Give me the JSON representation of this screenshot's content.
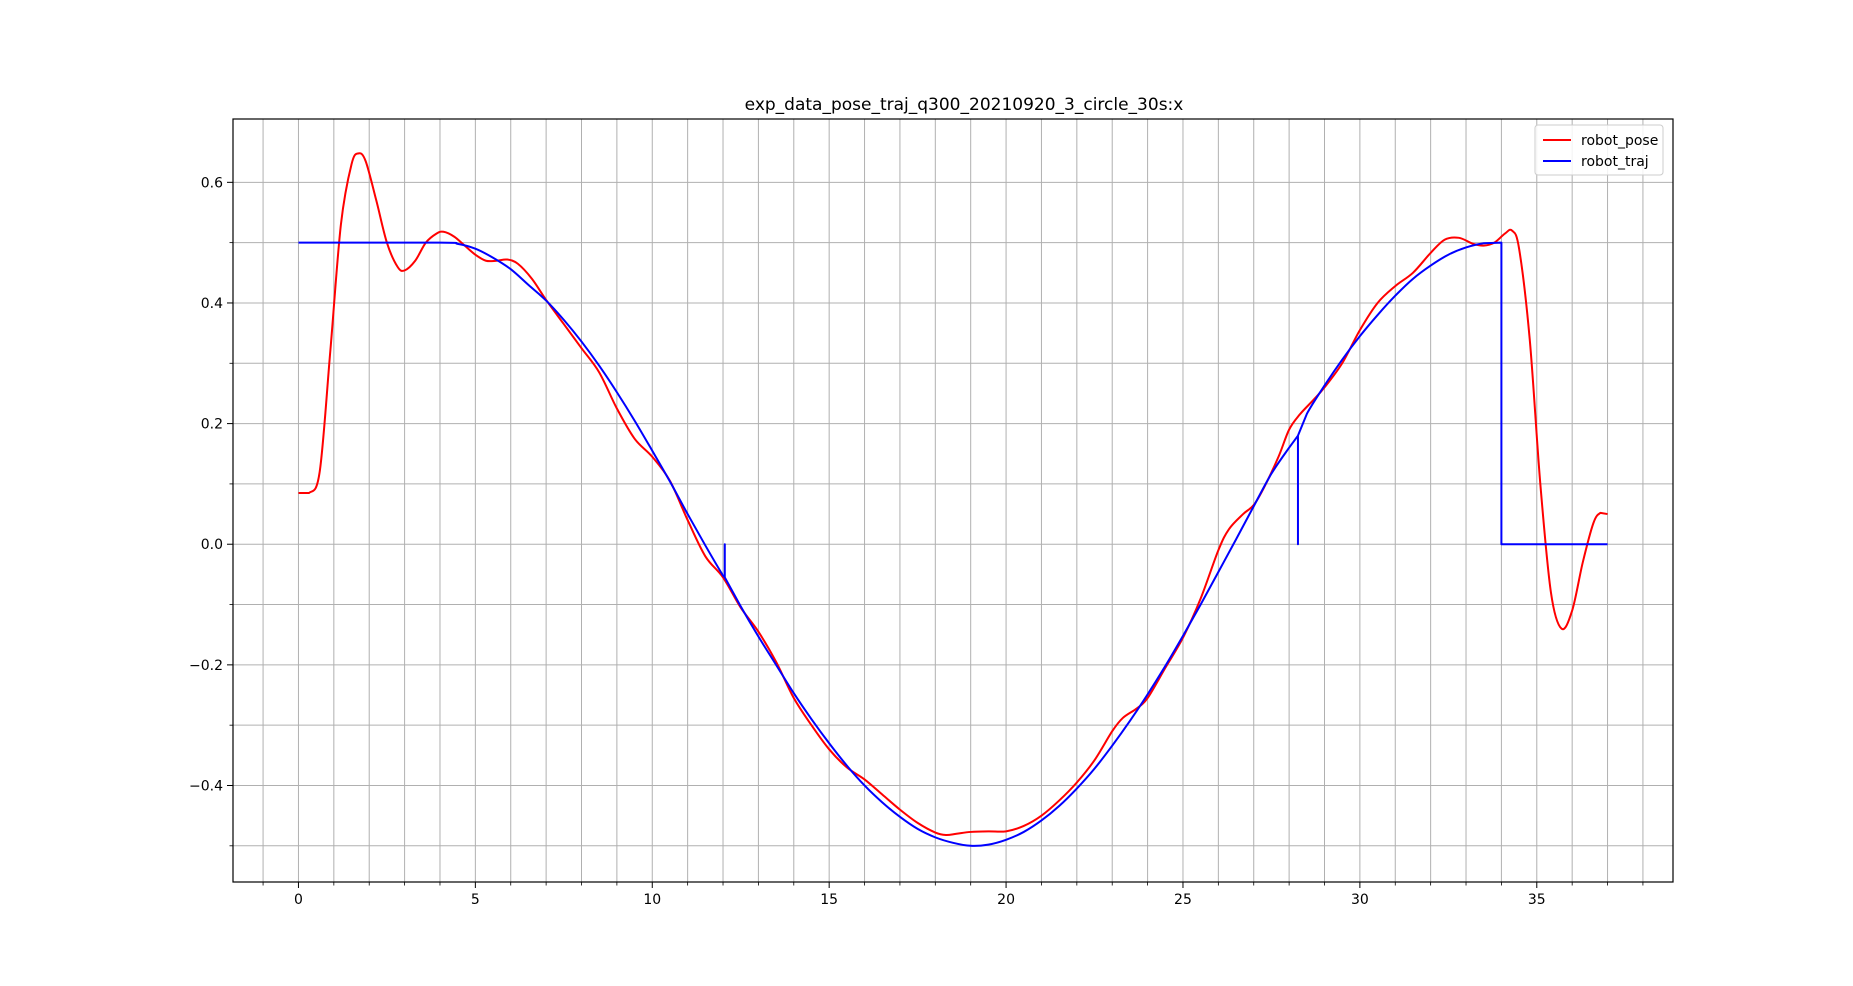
{
  "chart_data": {
    "type": "line",
    "title": "exp_data_pose_traj_q300_20210920_3_circle_30s:x",
    "xlabel": "",
    "ylabel": "",
    "xlim": [
      -1.85,
      38.85
    ],
    "ylim": [
      -0.56,
      0.705
    ],
    "x_major_ticks": [
      0,
      5,
      10,
      15,
      20,
      25,
      30,
      35
    ],
    "x_tick_labels": [
      "0",
      "5",
      "10",
      "15",
      "20",
      "25",
      "30",
      "35"
    ],
    "x_minor_ticks": [
      -1,
      1,
      2,
      3,
      4,
      6,
      7,
      8,
      9,
      11,
      12,
      13,
      14,
      16,
      17,
      18,
      19,
      21,
      22,
      23,
      24,
      26,
      27,
      28,
      29,
      31,
      32,
      33,
      34,
      36,
      37,
      38
    ],
    "y_major_ticks": [
      -0.4,
      -0.2,
      0.0,
      0.2,
      0.4,
      0.6
    ],
    "y_tick_labels": [
      "−0.4",
      "−0.2",
      "0.0",
      "0.2",
      "0.4",
      "0.6"
    ],
    "y_minor_ticks": [
      -0.5,
      -0.3,
      -0.1,
      0.1,
      0.3,
      0.5
    ],
    "grid": true,
    "grid_lines_at_major_and_minor": true,
    "legend_position": "top-right",
    "series": [
      {
        "name": "robot_pose",
        "color": "#ff0000",
        "points": [
          [
            0.0,
            0.085
          ],
          [
            0.3,
            0.085
          ],
          [
            0.6,
            0.12
          ],
          [
            0.9,
            0.32
          ],
          [
            1.2,
            0.53
          ],
          [
            1.5,
            0.63
          ],
          [
            1.7,
            0.648
          ],
          [
            1.9,
            0.635
          ],
          [
            2.2,
            0.57
          ],
          [
            2.5,
            0.5
          ],
          [
            2.8,
            0.46
          ],
          [
            3.0,
            0.454
          ],
          [
            3.3,
            0.47
          ],
          [
            3.6,
            0.5
          ],
          [
            3.9,
            0.515
          ],
          [
            4.1,
            0.518
          ],
          [
            4.4,
            0.51
          ],
          [
            4.7,
            0.495
          ],
          [
            5.0,
            0.48
          ],
          [
            5.3,
            0.47
          ],
          [
            5.6,
            0.47
          ],
          [
            5.9,
            0.472
          ],
          [
            6.2,
            0.465
          ],
          [
            6.6,
            0.44
          ],
          [
            7.0,
            0.405
          ],
          [
            7.5,
            0.365
          ],
          [
            8.0,
            0.325
          ],
          [
            8.5,
            0.285
          ],
          [
            9.0,
            0.225
          ],
          [
            9.5,
            0.175
          ],
          [
            10.0,
            0.145
          ],
          [
            10.5,
            0.105
          ],
          [
            11.0,
            0.04
          ],
          [
            11.5,
            -0.02
          ],
          [
            12.0,
            -0.055
          ],
          [
            12.5,
            -0.105
          ],
          [
            13.0,
            -0.145
          ],
          [
            13.5,
            -0.195
          ],
          [
            14.0,
            -0.255
          ],
          [
            14.5,
            -0.3
          ],
          [
            15.0,
            -0.34
          ],
          [
            15.5,
            -0.37
          ],
          [
            16.0,
            -0.39
          ],
          [
            16.5,
            -0.415
          ],
          [
            17.0,
            -0.44
          ],
          [
            17.5,
            -0.462
          ],
          [
            18.0,
            -0.478
          ],
          [
            18.3,
            -0.482
          ],
          [
            18.6,
            -0.48
          ],
          [
            19.0,
            -0.477
          ],
          [
            19.5,
            -0.476
          ],
          [
            20.0,
            -0.476
          ],
          [
            20.5,
            -0.467
          ],
          [
            21.0,
            -0.45
          ],
          [
            21.5,
            -0.425
          ],
          [
            22.0,
            -0.395
          ],
          [
            22.5,
            -0.358
          ],
          [
            23.0,
            -0.31
          ],
          [
            23.3,
            -0.288
          ],
          [
            23.7,
            -0.272
          ],
          [
            24.0,
            -0.255
          ],
          [
            24.5,
            -0.205
          ],
          [
            25.0,
            -0.155
          ],
          [
            25.5,
            -0.09
          ],
          [
            26.0,
            -0.01
          ],
          [
            26.3,
            0.025
          ],
          [
            26.7,
            0.05
          ],
          [
            27.0,
            0.065
          ],
          [
            27.3,
            0.095
          ],
          [
            27.7,
            0.145
          ],
          [
            28.0,
            0.19
          ],
          [
            28.3,
            0.215
          ],
          [
            28.7,
            0.24
          ],
          [
            29.0,
            0.26
          ],
          [
            29.5,
            0.3
          ],
          [
            30.0,
            0.355
          ],
          [
            30.5,
            0.4
          ],
          [
            31.0,
            0.428
          ],
          [
            31.5,
            0.45
          ],
          [
            32.0,
            0.483
          ],
          [
            32.4,
            0.505
          ],
          [
            32.8,
            0.508
          ],
          [
            33.2,
            0.498
          ],
          [
            33.5,
            0.495
          ],
          [
            33.8,
            0.5
          ],
          [
            34.1,
            0.515
          ],
          [
            34.3,
            0.52
          ],
          [
            34.5,
            0.49
          ],
          [
            34.8,
            0.34
          ],
          [
            35.1,
            0.1
          ],
          [
            35.4,
            -0.08
          ],
          [
            35.7,
            -0.14
          ],
          [
            36.0,
            -0.11
          ],
          [
            36.3,
            -0.03
          ],
          [
            36.6,
            0.035
          ],
          [
            36.8,
            0.052
          ],
          [
            37.0,
            0.05
          ]
        ]
      },
      {
        "name": "robot_traj",
        "color": "#0000ff",
        "points": [
          [
            0.0,
            0.5
          ],
          [
            4.0,
            0.5
          ],
          [
            4.5,
            0.498
          ],
          [
            5.0,
            0.49
          ],
          [
            5.5,
            0.475
          ],
          [
            6.0,
            0.456
          ],
          [
            6.5,
            0.43
          ],
          [
            7.0,
            0.404
          ],
          [
            7.5,
            0.372
          ],
          [
            8.0,
            0.336
          ],
          [
            8.5,
            0.296
          ],
          [
            9.0,
            0.252
          ],
          [
            9.5,
            0.205
          ],
          [
            10.0,
            0.155
          ],
          [
            10.5,
            0.104
          ],
          [
            11.0,
            0.05
          ],
          [
            11.5,
            -0.002
          ],
          [
            12.0,
            -0.052
          ],
          [
            12.05,
            -0.055
          ],
          [
            12.05,
            0.0
          ],
          [
            12.05,
            -0.055
          ],
          [
            12.5,
            -0.103
          ],
          [
            13.0,
            -0.153
          ],
          [
            13.5,
            -0.2
          ],
          [
            14.0,
            -0.247
          ],
          [
            14.5,
            -0.29
          ],
          [
            15.0,
            -0.33
          ],
          [
            15.5,
            -0.367
          ],
          [
            16.0,
            -0.4
          ],
          [
            16.5,
            -0.428
          ],
          [
            17.0,
            -0.452
          ],
          [
            17.5,
            -0.472
          ],
          [
            18.0,
            -0.486
          ],
          [
            18.5,
            -0.495
          ],
          [
            19.0,
            -0.5
          ],
          [
            19.5,
            -0.498
          ],
          [
            20.0,
            -0.49
          ],
          [
            20.5,
            -0.477
          ],
          [
            21.0,
            -0.458
          ],
          [
            21.5,
            -0.434
          ],
          [
            22.0,
            -0.405
          ],
          [
            22.5,
            -0.372
          ],
          [
            23.0,
            -0.334
          ],
          [
            23.5,
            -0.293
          ],
          [
            24.0,
            -0.249
          ],
          [
            24.5,
            -0.202
          ],
          [
            25.0,
            -0.152
          ],
          [
            25.5,
            -0.1
          ],
          [
            26.0,
            -0.046
          ],
          [
            26.5,
            0.008
          ],
          [
            27.0,
            0.063
          ],
          [
            27.5,
            0.117
          ],
          [
            28.0,
            0.16
          ],
          [
            28.25,
            0.18
          ],
          [
            28.25,
            0.0
          ],
          [
            28.25,
            0.18
          ],
          [
            28.5,
            0.216
          ],
          [
            29.0,
            0.263
          ],
          [
            29.5,
            0.306
          ],
          [
            30.0,
            0.345
          ],
          [
            30.5,
            0.38
          ],
          [
            31.0,
            0.412
          ],
          [
            31.5,
            0.44
          ],
          [
            32.0,
            0.462
          ],
          [
            32.5,
            0.48
          ],
          [
            33.0,
            0.492
          ],
          [
            33.5,
            0.499
          ],
          [
            34.0,
            0.5
          ],
          [
            34.0,
            0.0
          ],
          [
            37.0,
            0.0
          ]
        ]
      }
    ]
  }
}
